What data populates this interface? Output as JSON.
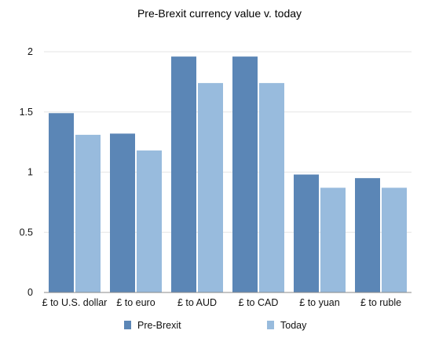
{
  "chart_data": {
    "type": "bar",
    "title": "Pre-Brexit currency value v. today",
    "xlabel": "",
    "ylabel": "",
    "ylim": [
      0,
      2
    ],
    "yticks": [
      "0",
      "0.5",
      "1",
      "1.5",
      "2"
    ],
    "categories": [
      "£ to U.S. dollar",
      "£ to euro",
      "£ to AUD",
      "£ to CAD",
      "£ to yuan",
      "£ to ruble"
    ],
    "series": [
      {
        "name": "Pre-Brexit",
        "color": "#5b86b6",
        "values": [
          1.49,
          1.32,
          1.96,
          1.96,
          0.98,
          0.95
        ]
      },
      {
        "name": "Today",
        "color": "#98bbdd",
        "values": [
          1.31,
          1.18,
          1.74,
          1.74,
          0.87,
          0.87
        ]
      }
    ],
    "grid": true,
    "legend": "bottom"
  }
}
